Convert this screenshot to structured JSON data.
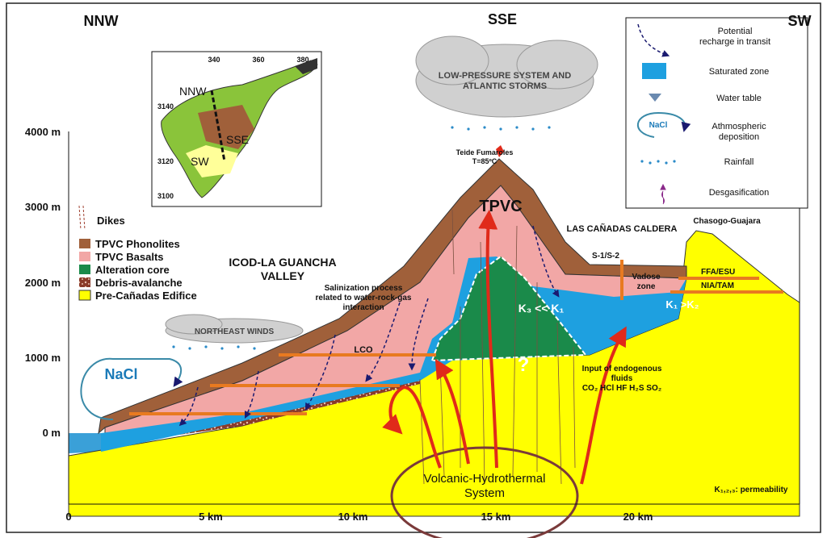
{
  "directions": {
    "left": "NNW",
    "center": "SSE",
    "right": "SW"
  },
  "y_axis": {
    "labels": [
      "4000 m",
      "3000 m",
      "2000 m",
      "1000 m",
      "0 m"
    ]
  },
  "x_axis": {
    "labels": [
      "0",
      "5 km",
      "10 km",
      "15 km",
      "20 km"
    ]
  },
  "legend_left": {
    "dikes": "Dikes",
    "items": [
      "TPVC Phonolites",
      "TPVC Basalts",
      "Alteration core",
      "Debris-avalanche",
      "Pre-Cañadas Edifice"
    ]
  },
  "legend_right": {
    "recharge": [
      "Potential",
      "recharge in transit"
    ],
    "saturated": "Saturated zone",
    "water_table": "Water table",
    "nacl_icon": "NaCl",
    "atmospheric": [
      "Athmospheric",
      "deposition"
    ],
    "rainfall": "Rainfall",
    "degas": "Desgasification"
  },
  "inset_map": {
    "x_ticks": [
      "340",
      "360",
      "380"
    ],
    "y_ticks": [
      "3140",
      "3120",
      "3100"
    ],
    "labels": [
      "NNW",
      "SSE",
      "SW"
    ]
  },
  "annotations": {
    "storm": [
      "LOW-PRESSURE SYSTEM AND",
      "ATLANTIC STORMS"
    ],
    "winds": "NORTHEAST WINDS",
    "fumaroles": [
      "Teide Fumaroles",
      "T=85ºC"
    ],
    "tpvc": "TPVC",
    "caldera": "LAS CAÑADAS CALDERA",
    "wells": "S-1/S-2",
    "chasogo": "Chasogo-Guajara",
    "ffa": "FFA/ESU",
    "nia": "NIA/TAM",
    "vadose": [
      "Vadose",
      "zone"
    ],
    "valley": [
      "ICOD-LA GUANCHA",
      "VALLEY"
    ],
    "salinization": [
      "Salinization process",
      "related to water-rock-gas",
      "interaction"
    ],
    "lco": "LCO",
    "k_core": "K₃ << K₁",
    "k_right": "K₁ >K₂",
    "question": "?",
    "endogenous": [
      "Input of endogenous",
      "fluids",
      "CO₂ HCl HF H₂S SO₂"
    ],
    "nacl": "NaCl",
    "system": [
      "Volcanic-Hydrothermal",
      "System"
    ],
    "permeability": "K₁,₂,₃: permeability"
  }
}
